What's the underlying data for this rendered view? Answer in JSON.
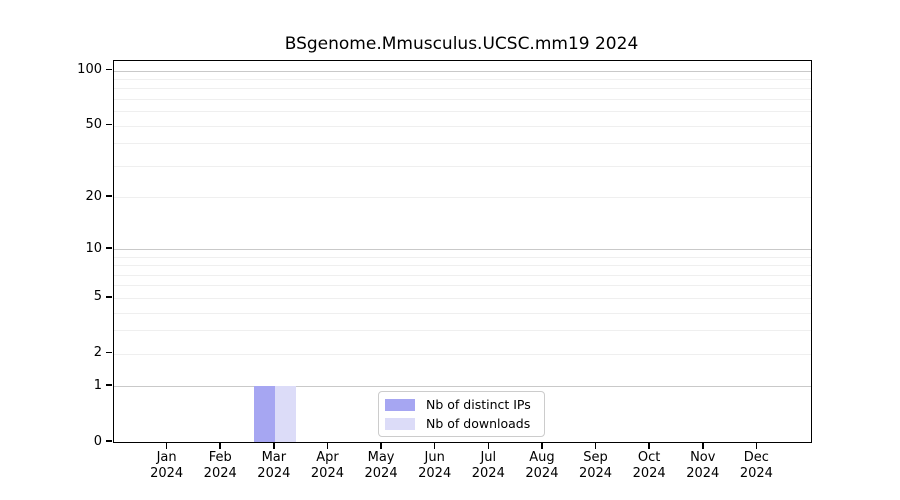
{
  "chart_data": {
    "type": "bar",
    "title": "BSgenome.Mmusculus.UCSC.mm19 2024",
    "categories": [
      {
        "month": "Jan",
        "year": "2024"
      },
      {
        "month": "Feb",
        "year": "2024"
      },
      {
        "month": "Mar",
        "year": "2024"
      },
      {
        "month": "Apr",
        "year": "2024"
      },
      {
        "month": "May",
        "year": "2024"
      },
      {
        "month": "Jun",
        "year": "2024"
      },
      {
        "month": "Jul",
        "year": "2024"
      },
      {
        "month": "Aug",
        "year": "2024"
      },
      {
        "month": "Sep",
        "year": "2024"
      },
      {
        "month": "Oct",
        "year": "2024"
      },
      {
        "month": "Nov",
        "year": "2024"
      },
      {
        "month": "Dec",
        "year": "2024"
      }
    ],
    "series": [
      {
        "name": "Nb of distinct IPs",
        "color": "#a6a6f2",
        "values": [
          0,
          0,
          1,
          0,
          0,
          0,
          0,
          0,
          0,
          0,
          0,
          0
        ]
      },
      {
        "name": "Nb of downloads",
        "color": "#dcdcf8",
        "values": [
          0,
          0,
          1,
          0,
          0,
          0,
          0,
          0,
          0,
          0,
          0,
          0
        ]
      }
    ],
    "xlabel": "",
    "ylabel": "",
    "y_scale": "log10(1+x)",
    "ylim": [
      0,
      113
    ],
    "y_ticks": [
      0,
      1,
      2,
      5,
      10,
      20,
      50,
      100
    ],
    "y_major_gridlines": [
      1,
      10,
      100
    ],
    "y_minor_gridlines": [
      2,
      3,
      4,
      5,
      6,
      7,
      8,
      9,
      20,
      30,
      40,
      50,
      60,
      70,
      80,
      90
    ],
    "grid": "horizontal",
    "legend_position": "bottom-center"
  }
}
